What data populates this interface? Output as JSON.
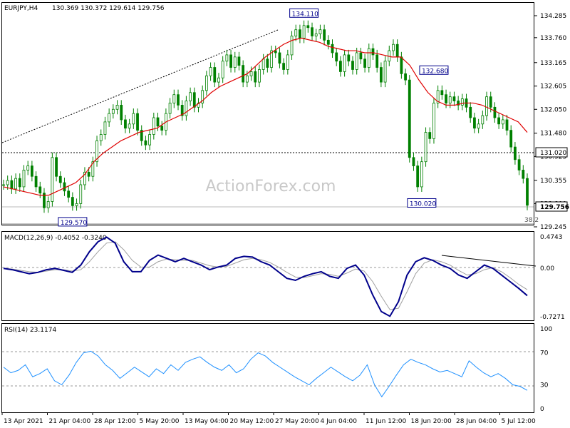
{
  "header": {
    "symbol": "EURJPY,H4",
    "ohlc": "130.369 130.372 129.614 129.756"
  },
  "watermark": "ActionForex.com",
  "colors": {
    "candle": "#008000",
    "ma": "#e00000",
    "macd": "#00008b",
    "signal": "#a0a0a0",
    "rsi": "#1e90ff",
    "grid_dash": "#999999",
    "label_box": "#00008b"
  },
  "price_panel": {
    "y_ticks": [
      "134.285",
      "133.760",
      "133.165",
      "132.605",
      "132.050",
      "131.480",
      "130.925",
      "130.355",
      "129.800",
      "129.245"
    ],
    "current_price": "129.756",
    "level_line": "131.020",
    "fib_label": "38.2",
    "annotations": [
      {
        "text": "134.110"
      },
      {
        "text": "132.680"
      },
      {
        "text": "130.020"
      },
      {
        "text": "129.570"
      }
    ]
  },
  "macd_panel": {
    "title": "MACD(12,26,9) -0.4052 -0.3240",
    "y_ticks": [
      "0.4743",
      "0.00",
      "-0.7271"
    ]
  },
  "rsi_panel": {
    "title": "RSI(14) 23.1174",
    "y_ticks": [
      "100",
      "70",
      "30",
      "0"
    ]
  },
  "x_axis": {
    "labels": [
      "13 Apr 2021",
      "21 Apr 04:00",
      "28 Apr 12:00",
      "5 May 20:00",
      "13 May 04:00",
      "20 May 12:00",
      "27 May 20:00",
      "4 Jun 04:00",
      "11 Jun 12:00",
      "18 Jun 20:00",
      "28 Jun 04:00",
      "5 Jul 12:00"
    ]
  },
  "chart_data": {
    "type": "line",
    "title": "EURJPY,H4",
    "series": [
      {
        "name": "EURJPY,H4",
        "x_range": [
          "13 Apr 2021",
          "5 Jul 12:00"
        ],
        "values": [
          130.25,
          130.35,
          130.15,
          130.4,
          130.2,
          130.6,
          130.7,
          130.45,
          130.2,
          130.05,
          129.7,
          129.85,
          130.9,
          130.45,
          130.3,
          130.1,
          129.95,
          129.75,
          129.8,
          130.25,
          130.55,
          130.45,
          130.8,
          131.3,
          131.45,
          131.75,
          131.95,
          132.05,
          132.15,
          131.8,
          131.6,
          131.7,
          131.95,
          131.55,
          131.3,
          131.2,
          131.45,
          131.85,
          131.65,
          131.55,
          131.95,
          132.2,
          132.4,
          132.15,
          131.9,
          132.25,
          132.45,
          132.1,
          132.2,
          132.5,
          132.85,
          133.05,
          132.7,
          132.8,
          133.2,
          133.35,
          133.05,
          133.3,
          133.1,
          132.7,
          132.85,
          132.95,
          132.7,
          133.0,
          133.25,
          133.05,
          133.45,
          133.4,
          133.15,
          133.0,
          133.35,
          133.8,
          133.95,
          133.75,
          134.05,
          134.0,
          133.8,
          133.85,
          133.95,
          133.7,
          133.6,
          133.4,
          133.2,
          132.95,
          133.35,
          133.2,
          133.0,
          133.4,
          133.25,
          133.05,
          133.5,
          133.35,
          133.05,
          132.7,
          133.2,
          133.45,
          133.6,
          133.3,
          132.9,
          132.75,
          130.9,
          130.7,
          130.2,
          130.8,
          131.5,
          131.35,
          132.2,
          132.5,
          132.4,
          132.2,
          132.35,
          132.25,
          132.15,
          132.3,
          132.1,
          131.85,
          131.6,
          131.7,
          131.9,
          132.35,
          132.1,
          131.85,
          131.7,
          131.8,
          131.55,
          131.15,
          130.85,
          130.6,
          130.4,
          129.76
        ]
      },
      {
        "name": "MA",
        "values": [
          130.2,
          130.15,
          130.1,
          130.05,
          130.0,
          130.0,
          130.1,
          130.2,
          130.3,
          130.5,
          130.8,
          131.0,
          131.15,
          131.3,
          131.4,
          131.5,
          131.55,
          131.6,
          131.75,
          131.85,
          131.95,
          132.1,
          132.25,
          132.45,
          132.6,
          132.7,
          132.8,
          132.9,
          133.1,
          133.3,
          133.45,
          133.6,
          133.7,
          133.75,
          133.7,
          133.65,
          133.55,
          133.5,
          133.45,
          133.45,
          133.4,
          133.4,
          133.35,
          133.3,
          133.3,
          133.1,
          132.75,
          132.45,
          132.25,
          132.15,
          132.15,
          132.2,
          132.2,
          132.15,
          132.05,
          131.95,
          131.85,
          131.75,
          131.5
        ]
      }
    ],
    "macd": [
      0.0,
      -0.02,
      -0.05,
      -0.08,
      -0.06,
      -0.02,
      0.0,
      -0.03,
      -0.06,
      0.05,
      0.25,
      0.4,
      0.47,
      0.38,
      0.1,
      -0.05,
      -0.05,
      0.12,
      0.2,
      0.15,
      0.1,
      0.15,
      0.1,
      0.05,
      -0.02,
      0.02,
      0.05,
      0.15,
      0.18,
      0.17,
      0.1,
      0.05,
      -0.05,
      -0.15,
      -0.18,
      -0.12,
      -0.08,
      -0.05,
      -0.12,
      -0.15,
      0.0,
      0.05,
      -0.1,
      -0.4,
      -0.65,
      -0.72,
      -0.5,
      -0.1,
      0.1,
      0.16,
      0.12,
      0.05,
      0.0,
      -0.1,
      -0.15,
      -0.05,
      0.05,
      0.0,
      -0.1,
      -0.2,
      -0.3,
      -0.41
    ],
    "macd_signal": [
      0.0,
      -0.01,
      -0.03,
      -0.05,
      -0.06,
      -0.04,
      -0.02,
      -0.02,
      -0.04,
      -0.02,
      0.1,
      0.25,
      0.38,
      0.4,
      0.28,
      0.12,
      0.02,
      0.02,
      0.1,
      0.14,
      0.13,
      0.12,
      0.12,
      0.08,
      0.04,
      0.02,
      0.03,
      0.08,
      0.13,
      0.15,
      0.13,
      0.09,
      0.02,
      -0.06,
      -0.13,
      -0.14,
      -0.11,
      -0.08,
      -0.09,
      -0.12,
      -0.07,
      -0.01,
      -0.04,
      -0.2,
      -0.42,
      -0.62,
      -0.6,
      -0.35,
      -0.08,
      0.08,
      0.13,
      0.1,
      0.05,
      -0.03,
      -0.1,
      -0.08,
      -0.02,
      0.01,
      -0.05,
      -0.14,
      -0.24,
      -0.32
    ],
    "rsi": [
      52,
      45,
      48,
      55,
      40,
      44,
      50,
      35,
      30,
      42,
      58,
      70,
      72,
      66,
      55,
      48,
      38,
      45,
      52,
      46,
      40,
      50,
      44,
      55,
      48,
      58,
      62,
      65,
      58,
      52,
      48,
      55,
      45,
      50,
      62,
      70,
      66,
      58,
      52,
      46,
      40,
      35,
      30,
      38,
      45,
      52,
      46,
      40,
      35,
      42,
      55,
      30,
      15,
      28,
      42,
      55,
      62,
      58,
      55,
      50,
      46,
      48,
      44,
      40,
      60,
      52,
      45,
      40,
      44,
      38,
      30,
      28,
      23
    ],
    "xlabel": "",
    "ylabel": "",
    "ylim": [
      129.245,
      134.285
    ]
  }
}
